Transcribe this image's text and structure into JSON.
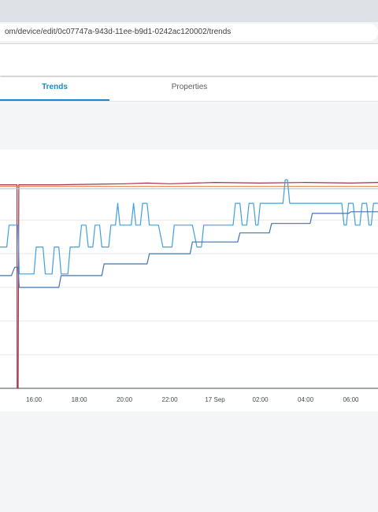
{
  "browser": {
    "url": "om/device/edit/0c07747a-943d-11ee-b9d1-0242ac120002/trends"
  },
  "tabs": [
    {
      "label": "Trends",
      "active": true
    },
    {
      "label": "Properties",
      "active": false
    }
  ],
  "colors": {
    "accent": "#1e88c7",
    "series_dark_red": "#a3334a",
    "series_orange": "#e0855a",
    "series_teal": "#9fd8d2",
    "series_light_blue": "#3ea0e0",
    "series_dark_blue": "#3f74b4"
  },
  "chart_data": {
    "type": "line",
    "x_tick_labels": [
      "16:00",
      "18:00",
      "20:00",
      "22:00",
      "17 Sep",
      "02:00",
      "04:00",
      "06:00"
    ],
    "x_tick_hours": [
      16,
      18,
      20,
      22,
      24,
      26,
      28,
      30
    ],
    "xlim_hours": [
      14.5,
      31.2
    ],
    "ylim": [
      0,
      7
    ],
    "gridlines": [
      1,
      2,
      3,
      4,
      5,
      6
    ],
    "grid": true,
    "legend": "none",
    "series": [
      {
        "color": "#a3334a",
        "points": [
          [
            14.5,
            6.05
          ],
          [
            15.25,
            6.05
          ],
          [
            15.26,
            0
          ],
          [
            15.3,
            0
          ],
          [
            15.33,
            6.05
          ],
          [
            17,
            6.05
          ],
          [
            20,
            6.08
          ],
          [
            21,
            6.1
          ],
          [
            22,
            6.08
          ],
          [
            24,
            6.12
          ],
          [
            26,
            6.1
          ],
          [
            28,
            6.12
          ],
          [
            30,
            6.1
          ],
          [
            31.2,
            6.12
          ]
        ]
      },
      {
        "color": "#e0855a",
        "points": [
          [
            14.5,
            6.0
          ],
          [
            31.2,
            6.0
          ]
        ]
      },
      {
        "color": "#9fd8d2",
        "points": [
          [
            14.5,
            5.93
          ],
          [
            31.2,
            5.93
          ]
        ]
      },
      {
        "color": "#3ea0e0",
        "points": [
          [
            14.5,
            4.2
          ],
          [
            14.8,
            4.2
          ],
          [
            14.9,
            4.85
          ],
          [
            15.3,
            4.85
          ],
          [
            15.35,
            3.4
          ],
          [
            16.0,
            3.4
          ],
          [
            16.1,
            4.2
          ],
          [
            16.4,
            4.2
          ],
          [
            16.5,
            3.4
          ],
          [
            16.8,
            3.4
          ],
          [
            16.9,
            4.2
          ],
          [
            17.1,
            4.2
          ],
          [
            17.2,
            3.4
          ],
          [
            17.5,
            3.4
          ],
          [
            17.6,
            4.2
          ],
          [
            18.0,
            4.2
          ],
          [
            18.1,
            4.85
          ],
          [
            18.3,
            4.85
          ],
          [
            18.4,
            4.2
          ],
          [
            18.6,
            4.2
          ],
          [
            18.7,
            4.85
          ],
          [
            18.9,
            4.85
          ],
          [
            19.0,
            4.2
          ],
          [
            19.3,
            4.2
          ],
          [
            19.4,
            4.85
          ],
          [
            19.6,
            4.85
          ],
          [
            19.7,
            5.5
          ],
          [
            19.8,
            4.85
          ],
          [
            20.3,
            4.85
          ],
          [
            20.4,
            5.5
          ],
          [
            20.5,
            4.85
          ],
          [
            20.7,
            4.85
          ],
          [
            20.8,
            5.5
          ],
          [
            21.0,
            5.5
          ],
          [
            21.1,
            4.85
          ],
          [
            21.5,
            4.85
          ],
          [
            21.7,
            4.2
          ],
          [
            22.1,
            4.2
          ],
          [
            22.2,
            4.85
          ],
          [
            23.0,
            4.85
          ],
          [
            23.2,
            4.2
          ],
          [
            23.4,
            4.2
          ],
          [
            23.5,
            4.85
          ],
          [
            24.8,
            4.85
          ],
          [
            24.9,
            5.5
          ],
          [
            25.1,
            5.5
          ],
          [
            25.2,
            4.85
          ],
          [
            25.4,
            4.85
          ],
          [
            25.5,
            5.5
          ],
          [
            25.7,
            5.5
          ],
          [
            25.8,
            4.85
          ],
          [
            25.9,
            4.85
          ],
          [
            26.0,
            5.5
          ],
          [
            27.0,
            5.5
          ],
          [
            27.1,
            6.2
          ],
          [
            27.2,
            6.2
          ],
          [
            27.3,
            5.5
          ],
          [
            29.6,
            5.5
          ],
          [
            29.7,
            4.85
          ],
          [
            29.8,
            4.85
          ],
          [
            29.9,
            5.5
          ],
          [
            30.1,
            5.5
          ],
          [
            30.2,
            4.85
          ],
          [
            30.4,
            4.85
          ],
          [
            30.5,
            5.5
          ],
          [
            30.7,
            5.5
          ],
          [
            30.8,
            4.85
          ],
          [
            30.9,
            4.85
          ],
          [
            31.0,
            5.5
          ],
          [
            31.2,
            5.5
          ]
        ]
      },
      {
        "color": "#3f74b4",
        "points": [
          [
            14.5,
            3.35
          ],
          [
            15.0,
            3.35
          ],
          [
            15.15,
            3.6
          ],
          [
            15.3,
            3.6
          ],
          [
            15.35,
            3.0
          ],
          [
            17.1,
            3.0
          ],
          [
            17.2,
            3.35
          ],
          [
            19.0,
            3.35
          ],
          [
            19.1,
            3.7
          ],
          [
            21.0,
            3.7
          ],
          [
            21.1,
            4.0
          ],
          [
            22.9,
            4.0
          ],
          [
            23.0,
            4.35
          ],
          [
            25.0,
            4.35
          ],
          [
            25.1,
            4.62
          ],
          [
            26.4,
            4.62
          ],
          [
            26.5,
            4.9
          ],
          [
            28.2,
            4.9
          ],
          [
            28.3,
            5.2
          ],
          [
            29.9,
            5.2
          ],
          [
            30.0,
            5.25
          ],
          [
            31.2,
            5.25
          ]
        ]
      }
    ]
  }
}
